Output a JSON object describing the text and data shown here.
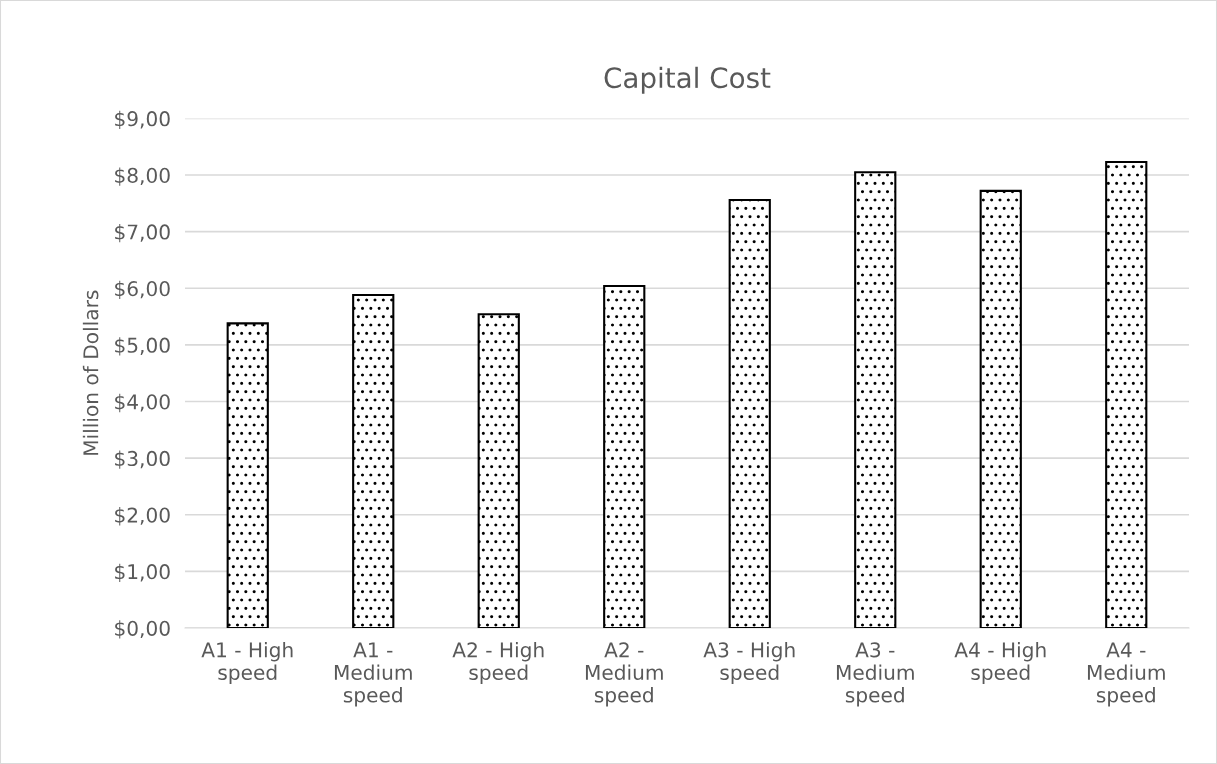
{
  "chart_data": {
    "type": "bar",
    "title": "Capital Cost",
    "ylabel": "Million of Dollars",
    "categories": [
      "A1 - High\nspeed",
      "A1 -\nMedium\nspeed",
      "A2 - High\nspeed",
      "A2 -\nMedium\nspeed",
      "A3 - High\nspeed",
      "A3 -\nMedium\nspeed",
      "A4 - High\nspeed",
      "A4 -\nMedium\nspeed"
    ],
    "values": [
      5.38,
      5.88,
      5.54,
      6.04,
      7.56,
      8.05,
      7.72,
      8.23
    ],
    "color": "#000000",
    "ylim": [
      0,
      9
    ],
    "yticks": [
      {
        "value": 0,
        "label": "$0,00"
      },
      {
        "value": 1,
        "label": "$1,00"
      },
      {
        "value": 2,
        "label": "$2,00"
      },
      {
        "value": 3,
        "label": "$3,00"
      },
      {
        "value": 4,
        "label": "$4,00"
      },
      {
        "value": 5,
        "label": "$5,00"
      },
      {
        "value": 6,
        "label": "$6,00"
      },
      {
        "value": 7,
        "label": "$7,00"
      },
      {
        "value": 8,
        "label": "$8,00"
      },
      {
        "value": 9,
        "label": "$9,00"
      }
    ],
    "grid": "y"
  }
}
